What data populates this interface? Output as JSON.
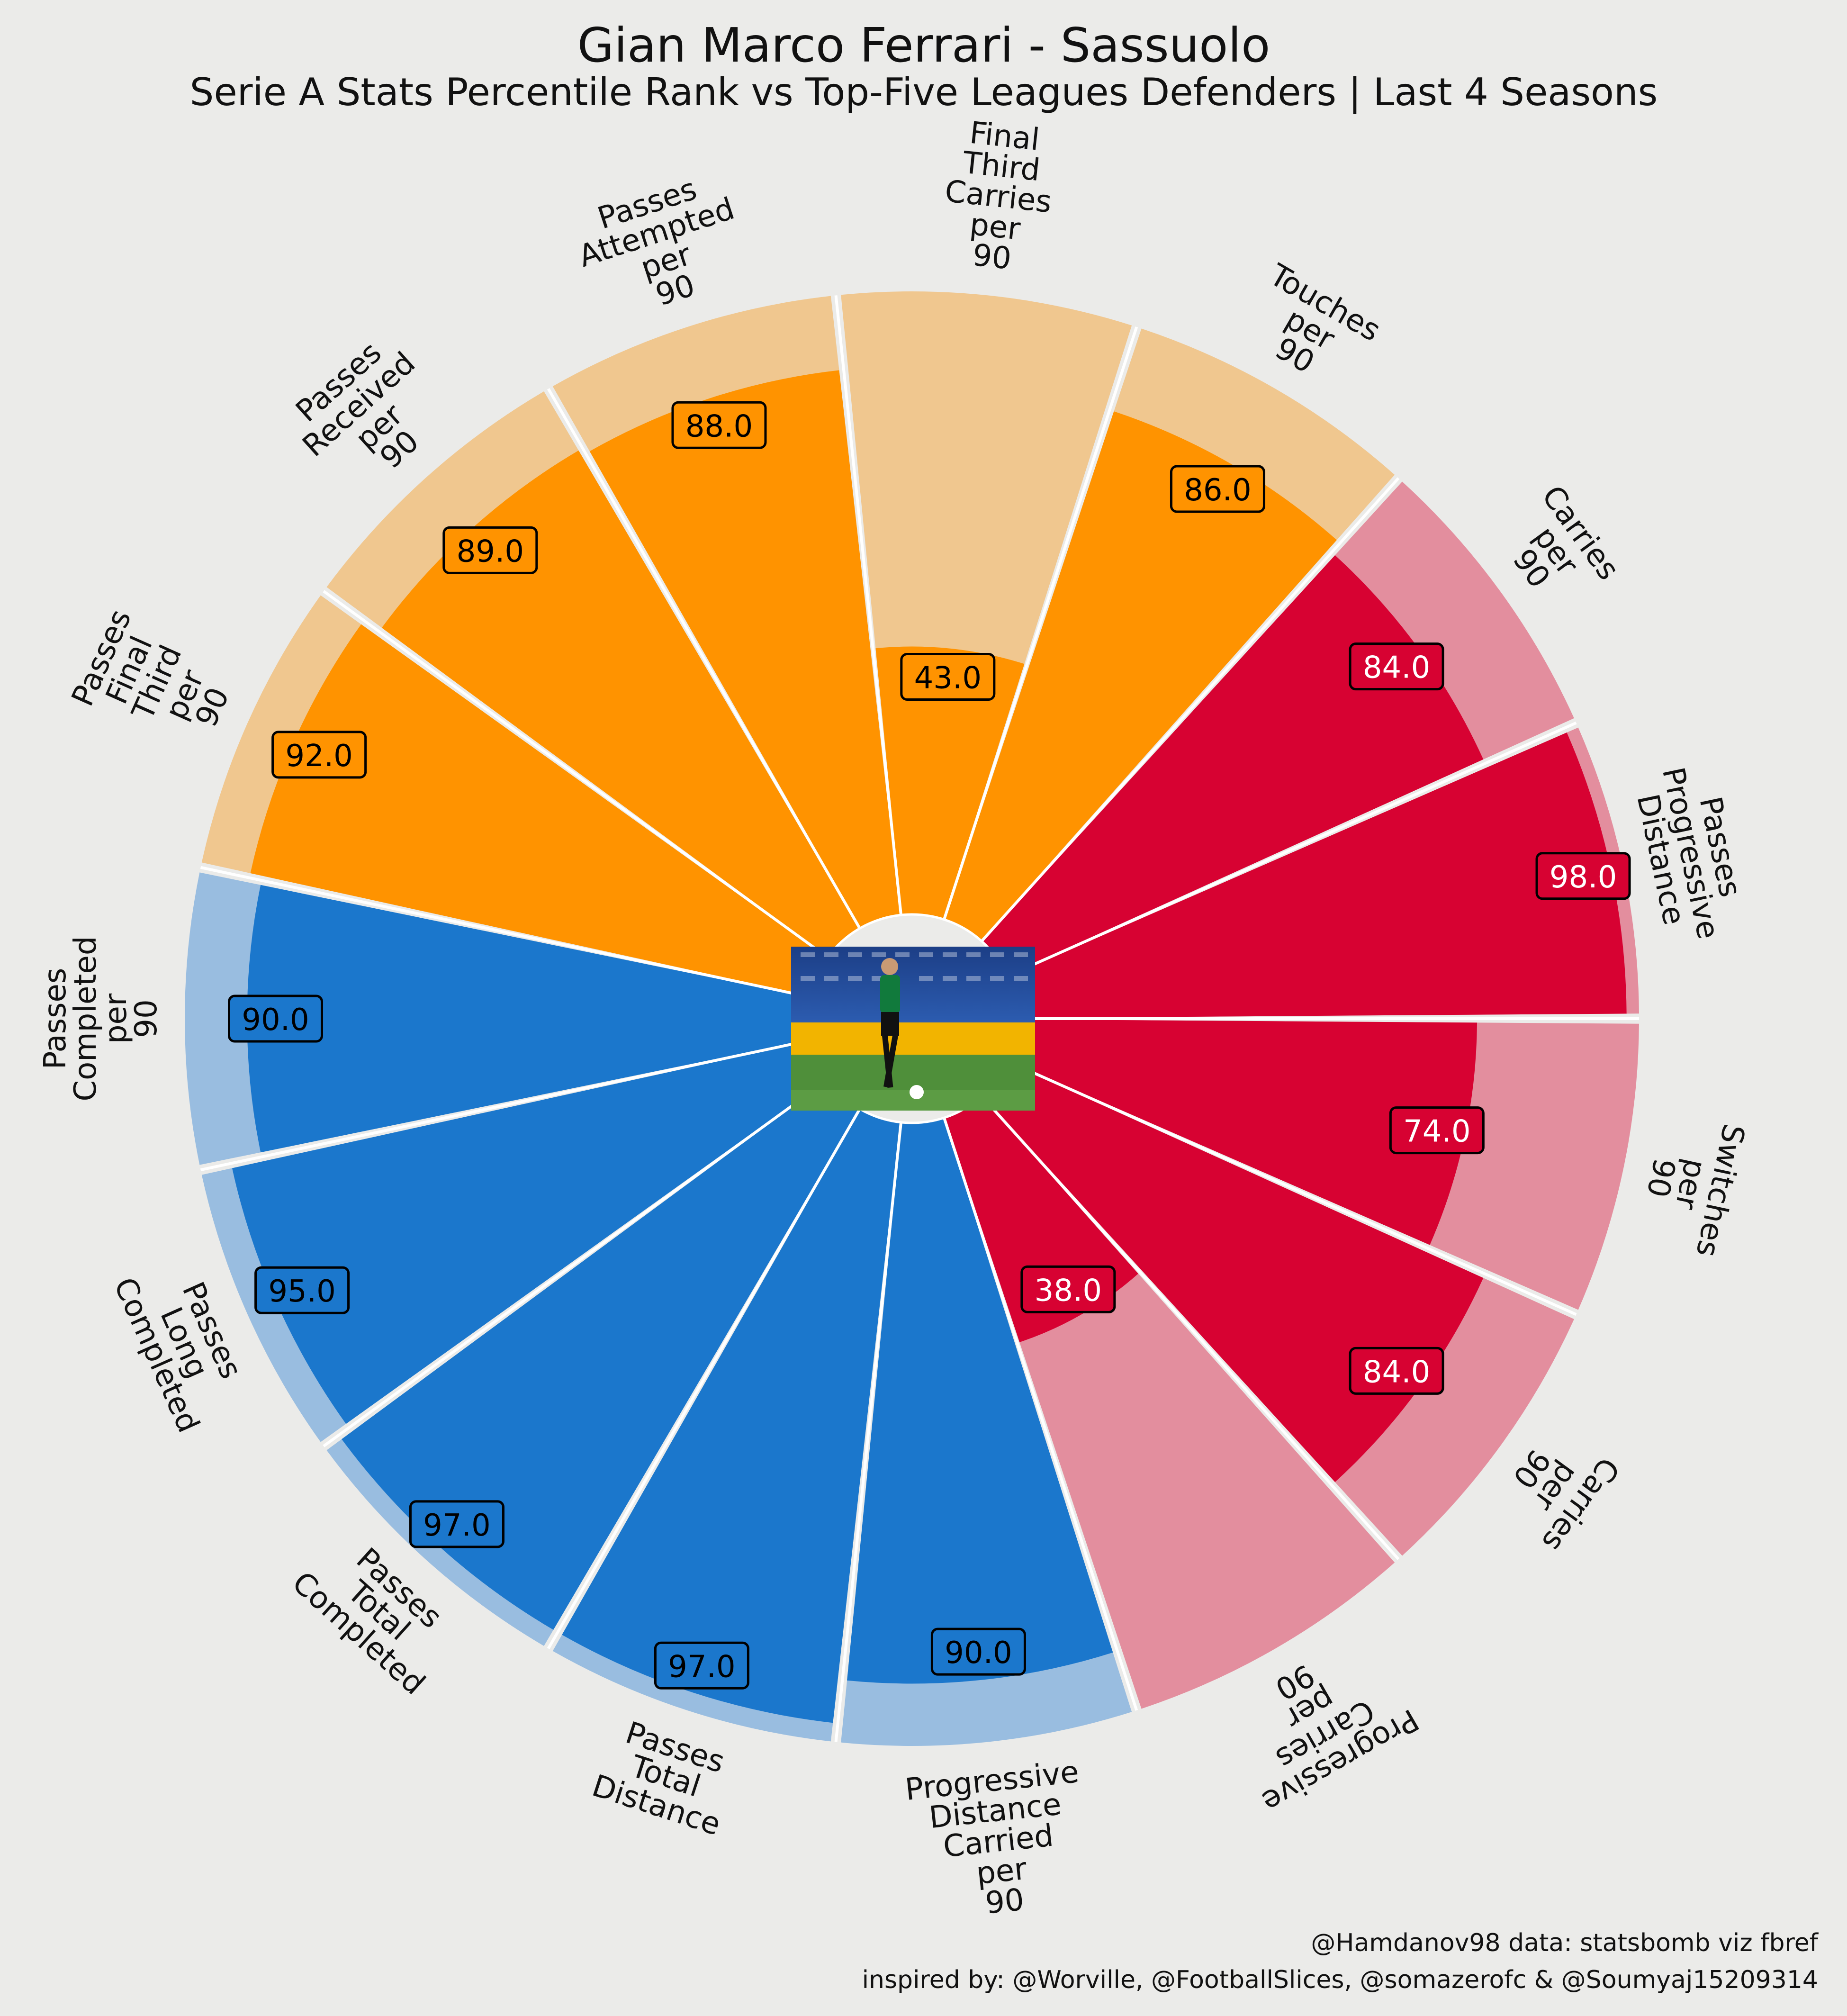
{
  "title": "Gian Marco Ferrari - Sassuolo",
  "subtitle": "Serie A Stats Percentile Rank vs Top-Five Leagues  Defenders | Last 4 Seasons",
  "credits": [
    "@Hamdanov98 data: statsbomb viz fbref",
    "inspired by: @Worville, @FootballSlices, @somazerofc & @Soumyaj15209314"
  ],
  "colors": {
    "background": "#ebebe9",
    "blue": "#1b77cc",
    "blue_light": "#99bde0",
    "orange": "#ff9300",
    "orange_light": "#f0c78f",
    "red": "#d70232",
    "red_light": "#e38e9e",
    "separator": "#ffffff"
  },
  "center_image": "photo of player in green-and-black Sassuolo kit dribbling a ball in front of stadium seats",
  "chart_data": {
    "type": "radar-pizza",
    "scale": [
      0,
      100
    ],
    "params": [
      {
        "label": "Progressive\nDistance\nCarried\nper\n90",
        "value": 90.0,
        "group": "blue"
      },
      {
        "label": "Passes\nTotal\nDistance",
        "value": 97.0,
        "group": "blue"
      },
      {
        "label": "Passes\nTotal\nCompleted",
        "value": 97.0,
        "group": "blue"
      },
      {
        "label": "Passes\nLong\nCompleted",
        "value": 95.0,
        "group": "blue"
      },
      {
        "label": "Passes\nCompleted\nper\n90",
        "value": 90.0,
        "group": "blue"
      },
      {
        "label": "Passes\nFinal\nThird\nper\n90",
        "value": 92.0,
        "group": "orange"
      },
      {
        "label": "Passes\nReceived\nper\n90",
        "value": 89.0,
        "group": "orange"
      },
      {
        "label": "Passes\nAttempted\nper\n90",
        "value": 88.0,
        "group": "orange"
      },
      {
        "label": "Final\nThird\nCarries\nper\n90",
        "value": 43.0,
        "group": "orange"
      },
      {
        "label": "Touches\nper\n90",
        "value": 86.0,
        "group": "orange"
      },
      {
        "label": "Carries\nper\n90",
        "value": 84.0,
        "group": "red"
      },
      {
        "label": "Passes\nProgressive\nDistance",
        "value": 98.0,
        "group": "red"
      },
      {
        "label": "Switches\nper\n90",
        "value": 74.0,
        "group": "red"
      },
      {
        "label": "Carries\nper\n90",
        "value": 84.0,
        "group": "red"
      },
      {
        "label": "Progressive\nCarries\nper\n90",
        "value": 38.0,
        "group": "red"
      }
    ]
  }
}
